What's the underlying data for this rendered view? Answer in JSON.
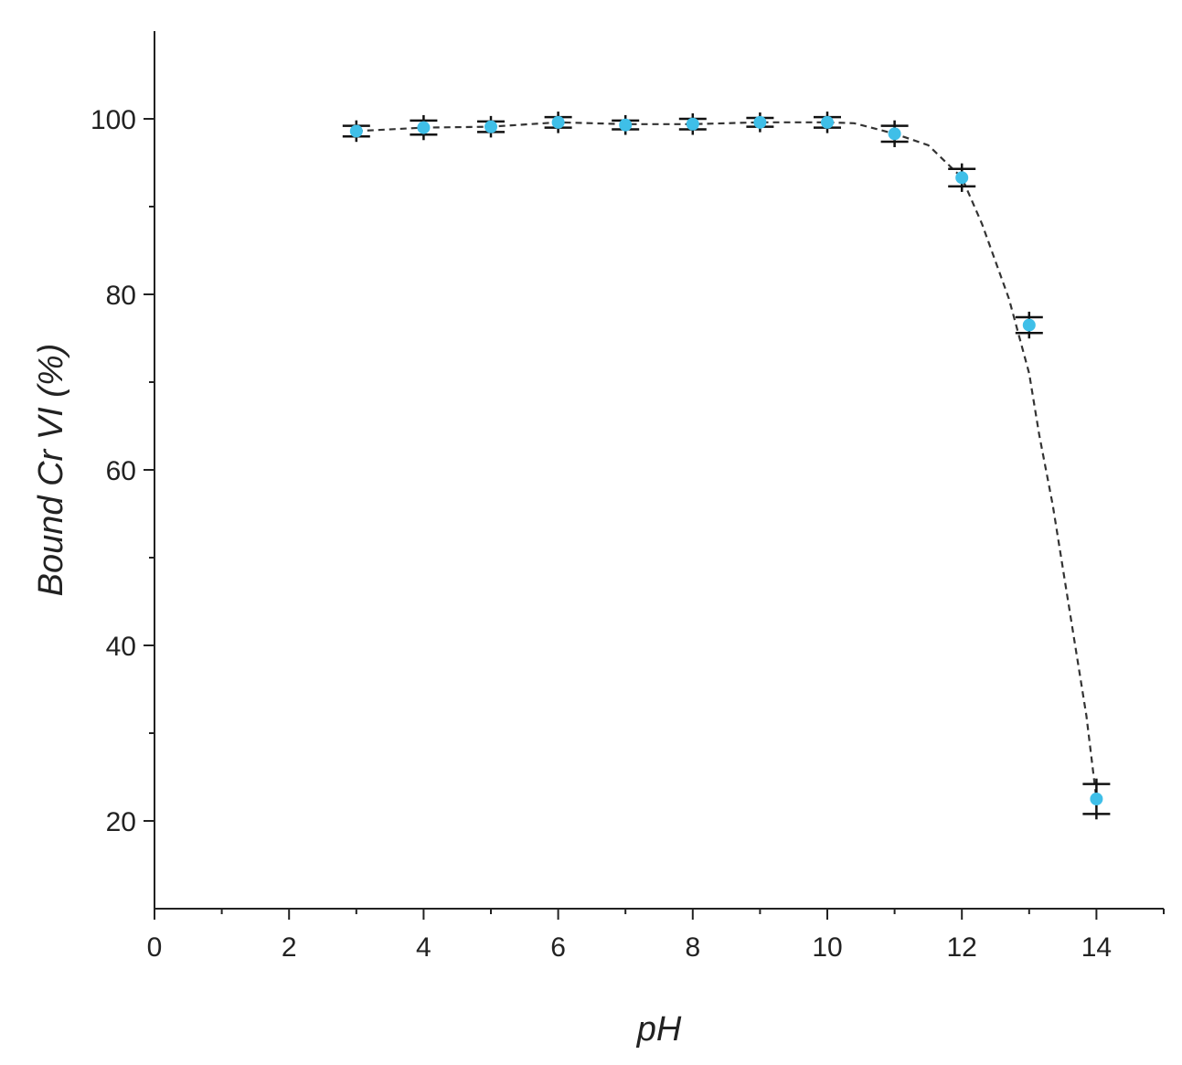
{
  "chart_data": {
    "type": "scatter",
    "title": "",
    "xlabel": "pH",
    "ylabel": "Bound Cr VI (%)",
    "xlim": [
      0,
      15
    ],
    "ylim": [
      10,
      110
    ],
    "x_ticks": [
      0,
      2,
      4,
      6,
      8,
      10,
      12,
      14
    ],
    "y_ticks": [
      20,
      40,
      60,
      80,
      100
    ],
    "grid": false,
    "legend": "none",
    "series": [
      {
        "x": [
          3,
          4,
          5,
          6,
          7,
          8,
          9,
          10,
          11,
          12,
          13,
          14
        ],
        "y": [
          98.6,
          99.0,
          99.1,
          99.6,
          99.3,
          99.4,
          99.6,
          99.6,
          98.3,
          93.3,
          76.5,
          22.5
        ],
        "error": [
          0.6,
          0.8,
          0.6,
          0.6,
          0.5,
          0.6,
          0.5,
          0.6,
          0.9,
          1.0,
          0.9,
          1.7
        ],
        "marker_color": "#3fbfe8",
        "errorbar_color": "#111111",
        "line_style": "dashed",
        "line_color": "#333333",
        "trend_line": {
          "x": [
            3,
            4,
            5,
            6,
            7,
            8,
            9,
            10,
            10.4,
            11,
            11.5,
            12,
            12.3,
            12.7,
            13,
            13.15,
            13.35,
            13.6,
            13.85,
            14
          ],
          "y": [
            98.6,
            99.0,
            99.1,
            99.6,
            99.4,
            99.4,
            99.6,
            99.6,
            99.5,
            98.3,
            97.0,
            93.3,
            88.0,
            79.5,
            71.0,
            64.0,
            56.0,
            44.0,
            32.0,
            22.5
          ]
        }
      }
    ]
  },
  "colors": {
    "axis": "#222222",
    "marker": "#3fbfe8",
    "errorbar": "#111111",
    "trend_line": "#333333"
  }
}
